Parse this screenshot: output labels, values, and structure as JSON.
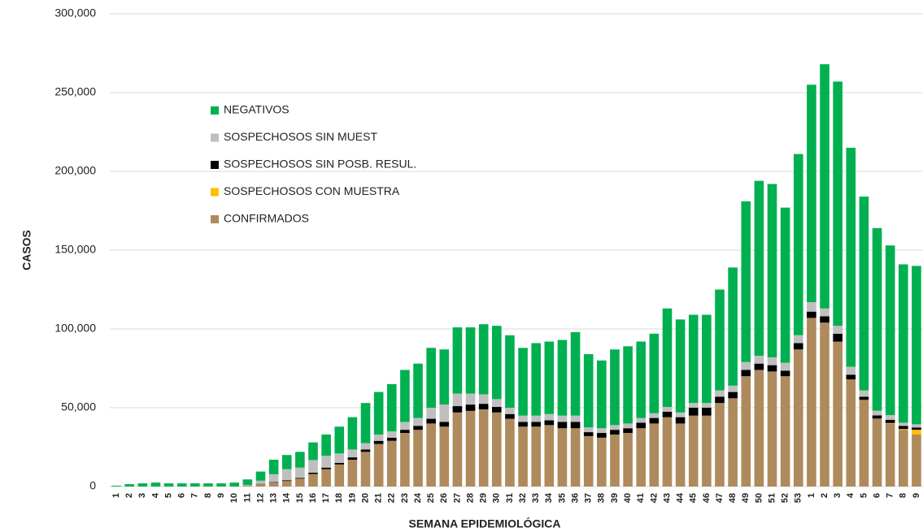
{
  "chart_data": {
    "type": "stacked_bar",
    "x_label": "SEMANA EPIDEMIOLÓGICA",
    "y_label": "CASOS",
    "categories": [
      "1",
      "2",
      "3",
      "4",
      "5",
      "6",
      "7",
      "8",
      "9",
      "10",
      "11",
      "12",
      "13",
      "14",
      "15",
      "16",
      "17",
      "18",
      "19",
      "20",
      "21",
      "22",
      "23",
      "24",
      "25",
      "26",
      "27",
      "28",
      "29",
      "30",
      "31",
      "32",
      "33",
      "34",
      "35",
      "36",
      "37",
      "38",
      "39",
      "40",
      "41",
      "42",
      "43",
      "44",
      "45",
      "46",
      "47",
      "48",
      "49",
      "50",
      "51",
      "52",
      "53",
      "1",
      "2",
      "3",
      "4",
      "5",
      "6",
      "7",
      "8",
      "9"
    ],
    "series": [
      {
        "name": "CONFIRMADOS",
        "color": "#ae8a5c",
        "values": [
          0,
          0,
          0,
          0,
          0,
          0,
          0,
          0,
          0,
          0,
          500,
          1500,
          2500,
          3500,
          5000,
          8000,
          11000,
          14000,
          17000,
          22000,
          27000,
          29000,
          34000,
          36000,
          40000,
          38000,
          47000,
          48000,
          49000,
          47000,
          43000,
          38000,
          38000,
          39000,
          37000,
          37000,
          32000,
          31000,
          33000,
          34000,
          37000,
          40000,
          44000,
          40000,
          45000,
          45000,
          53000,
          56000,
          70000,
          74000,
          73000,
          70000,
          87000,
          107000,
          104000,
          92000,
          68000,
          55000,
          43000,
          40000,
          36000,
          33000
        ]
      },
      {
        "name": "SOSPECHOSOS CON MUESTRA",
        "color": "#ffc000",
        "values": [
          0,
          0,
          0,
          0,
          0,
          0,
          0,
          0,
          0,
          0,
          0,
          0,
          0,
          0,
          0,
          0,
          0,
          0,
          0,
          0,
          0,
          0,
          0,
          0,
          0,
          0,
          0,
          0,
          0,
          0,
          0,
          0,
          0,
          0,
          0,
          0,
          0,
          0,
          0,
          0,
          0,
          0,
          0,
          0,
          0,
          0,
          0,
          0,
          0,
          0,
          0,
          0,
          0,
          0,
          0,
          0,
          0,
          0,
          100,
          300,
          500,
          3000
        ]
      },
      {
        "name": "SOSPECHOSOS SIN POSB. RESUL.",
        "color": "#000000",
        "values": [
          0,
          0,
          0,
          0,
          0,
          0,
          0,
          0,
          0,
          0,
          0,
          200,
          300,
          500,
          500,
          800,
          1000,
          1000,
          1500,
          1500,
          2000,
          2000,
          2000,
          2500,
          3000,
          3000,
          4000,
          4000,
          3500,
          3500,
          3000,
          3000,
          3000,
          3000,
          4000,
          4000,
          2500,
          3000,
          3000,
          3000,
          3500,
          3500,
          3500,
          4000,
          5000,
          5000,
          4000,
          4000,
          4000,
          4000,
          4000,
          3500,
          4000,
          4000,
          4000,
          5000,
          3000,
          2000,
          2000,
          2000,
          2000,
          1500
        ]
      },
      {
        "name": "SOSPECHOSOS SIN MUEST",
        "color": "#bfbfbf",
        "values": [
          0,
          0,
          0,
          0,
          0,
          0,
          0,
          0,
          0,
          0,
          500,
          2000,
          5000,
          7000,
          6500,
          8000,
          7500,
          6000,
          5000,
          4000,
          4000,
          4000,
          5000,
          5000,
          7000,
          11000,
          8000,
          7000,
          6000,
          5000,
          4000,
          4000,
          4000,
          4000,
          4000,
          4000,
          3000,
          3000,
          3000,
          3000,
          3000,
          3000,
          3000,
          3000,
          3000,
          3000,
          4000,
          4000,
          5000,
          5000,
          5000,
          5000,
          5000,
          6000,
          5000,
          5000,
          5000,
          4000,
          3000,
          3000,
          2000,
          2000
        ]
      },
      {
        "name": "NEGATIVOS",
        "color": "#00b050",
        "values": [
          500,
          1500,
          2000,
          2500,
          2000,
          2000,
          2000,
          2000,
          2000,
          2500,
          3500,
          5800,
          9200,
          9000,
          10000,
          11200,
          13500,
          17000,
          20500,
          25500,
          27000,
          30000,
          33000,
          34500,
          38000,
          35000,
          42000,
          42000,
          44500,
          46500,
          46000,
          43000,
          46000,
          46000,
          48000,
          53000,
          46500,
          43000,
          48000,
          49000,
          48500,
          50500,
          62500,
          59000,
          56000,
          56000,
          64000,
          75000,
          102000,
          111000,
          110000,
          98500,
          115000,
          138000,
          155000,
          155000,
          139000,
          123000,
          115900,
          107700,
          100500,
          100500
        ]
      }
    ],
    "ylim": [
      0,
      300000
    ],
    "yticks": [
      0,
      {
        "value": 50000,
        "label": "50,000"
      },
      {
        "value": 100000,
        "label": "100,000"
      },
      {
        "value": 150000,
        "label": "150,000"
      },
      {
        "value": 200000,
        "label": "200,000"
      },
      {
        "value": 250000,
        "label": "250,000"
      },
      {
        "value": 300000,
        "label": "300,000"
      }
    ],
    "grid": true
  }
}
